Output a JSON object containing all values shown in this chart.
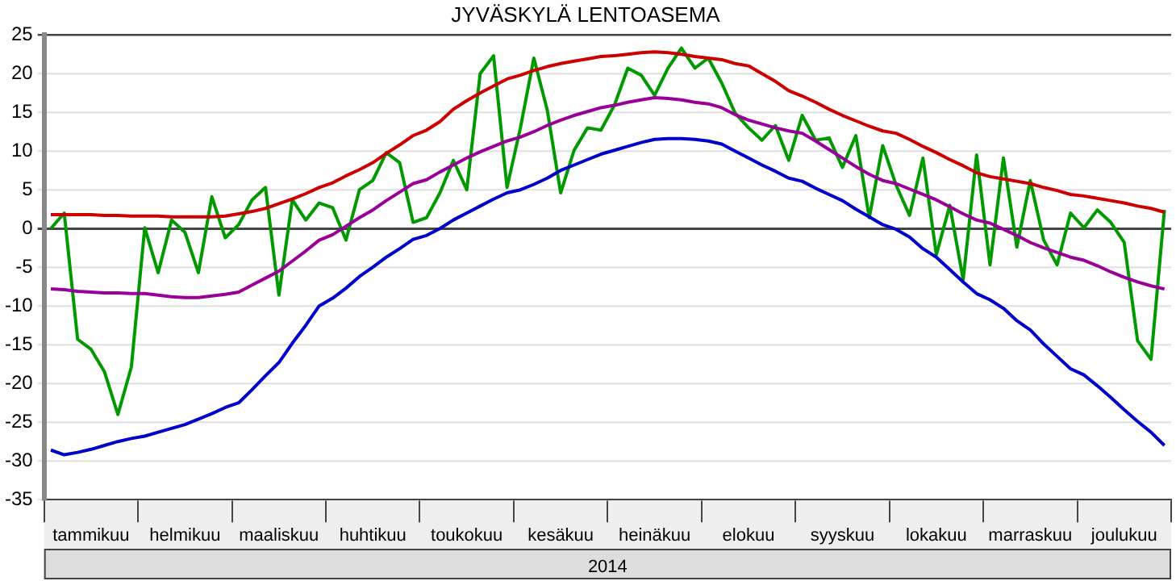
{
  "chart_data": {
    "type": "line",
    "title": "JYVÄSKYLÄ LENTOASEMA",
    "xlabel": "2014",
    "categories": [
      null,
      null,
      null,
      "tammikuu",
      null,
      null,
      null,
      null,
      null,
      null,
      "helmikuu",
      null,
      null,
      null,
      null,
      null,
      null,
      "maaliskuu",
      null,
      null,
      null,
      null,
      null,
      null,
      "huhtikuu",
      null,
      null,
      null,
      null,
      null,
      null,
      "toukokuu",
      null,
      null,
      null,
      null,
      null,
      null,
      "kesäkuu",
      null,
      null,
      null,
      null,
      null,
      null,
      "heinäkuu",
      null,
      null,
      null,
      null,
      null,
      null,
      "elokuu",
      null,
      null,
      null,
      null,
      null,
      null,
      "syyskuu",
      null,
      null,
      null,
      null,
      null,
      null,
      "lokakuu",
      null,
      null,
      null,
      null,
      null,
      null,
      "marraskuu",
      null,
      null,
      null,
      null,
      null,
      null,
      "joulukuu",
      null,
      null,
      null
    ],
    "ylim": [
      -35,
      25
    ],
    "yticks": [
      -35,
      -30,
      -25,
      -20,
      -15,
      -10,
      -5,
      0,
      5,
      10,
      15,
      20,
      25
    ],
    "grid": "y",
    "marker": "none",
    "line_style": "solid",
    "series": [
      {
        "color": "#cc0000",
        "values": [
          1.8,
          1.8,
          1.8,
          1.8,
          1.7,
          1.7,
          1.6,
          1.6,
          1.6,
          1.5,
          1.5,
          1.5,
          1.5,
          1.6,
          1.9,
          2.2,
          2.6,
          3.2,
          3.8,
          4.5,
          5.3,
          5.9,
          6.8,
          7.6,
          8.5,
          9.7,
          10.8,
          12,
          12.7,
          13.8,
          15.4,
          16.5,
          17.5,
          18.4,
          19.3,
          19.8,
          20.4,
          20.9,
          21.3,
          21.6,
          21.9,
          22.2,
          22.3,
          22.5,
          22.7,
          22.8,
          22.7,
          22.5,
          22.2,
          22,
          21.8,
          21.3,
          21,
          20,
          19,
          17.8,
          17.1,
          16.3,
          15.4,
          14.6,
          13.9,
          13.2,
          12.6,
          12.3,
          11.5,
          10.6,
          9.8,
          8.9,
          8.1,
          7.2,
          6.7,
          6.4,
          6.1,
          5.8,
          5.3,
          4.9,
          4.4,
          4.2,
          3.9,
          3.6,
          3.3,
          2.9,
          2.6,
          2.1
        ]
      },
      {
        "color": "#990099",
        "values": [
          -7.8,
          -7.9,
          -8.1,
          -8.2,
          -8.3,
          -8.3,
          -8.4,
          -8.4,
          -8.6,
          -8.8,
          -8.9,
          -8.9,
          -8.7,
          -8.5,
          -8.2,
          -7.3,
          -6.4,
          -5.5,
          -4.2,
          -2.9,
          -1.5,
          -0.8,
          0.3,
          1.4,
          2.4,
          3.6,
          4.7,
          5.8,
          6.3,
          7.3,
          8.2,
          9.1,
          9.9,
          10.6,
          11.3,
          11.8,
          12.5,
          13.3,
          14,
          14.6,
          15.1,
          15.6,
          15.9,
          16.3,
          16.6,
          16.9,
          16.8,
          16.6,
          16.3,
          16.1,
          15.6,
          14.7,
          14,
          13.5,
          13,
          12.6,
          12.3,
          11.3,
          10.2,
          9.1,
          8,
          7,
          6.2,
          5.8,
          5.1,
          4.4,
          3.7,
          2.8,
          1.9,
          1.1,
          0.7,
          -0.1,
          -0.9,
          -1.8,
          -2.5,
          -3.1,
          -3.7,
          -4.1,
          -4.8,
          -5.6,
          -6.3,
          -6.9,
          -7.4,
          -7.8
        ]
      },
      {
        "color": "#0000cc",
        "values": [
          -28.6,
          -29.2,
          -28.9,
          -28.5,
          -28,
          -27.5,
          -27.1,
          -26.8,
          -26.3,
          -25.8,
          -25.3,
          -24.6,
          -23.9,
          -23.1,
          -22.5,
          -20.8,
          -19,
          -17.3,
          -14.8,
          -12.5,
          -10,
          -9,
          -7.7,
          -6.2,
          -5,
          -3.7,
          -2.6,
          -1.4,
          -0.9,
          0,
          1.1,
          2,
          2.9,
          3.8,
          4.6,
          5,
          5.7,
          6.5,
          7.5,
          8.2,
          8.9,
          9.6,
          10.1,
          10.6,
          11.1,
          11.5,
          11.6,
          11.6,
          11.5,
          11.3,
          10.9,
          10,
          9.1,
          8.2,
          7.4,
          6.5,
          6.1,
          5.2,
          4.4,
          3.6,
          2.5,
          1.5,
          0.5,
          -0.1,
          -1.1,
          -2.6,
          -3.7,
          -5.3,
          -6.9,
          -8.4,
          -9.2,
          -10.3,
          -11.9,
          -13.1,
          -14.9,
          -16.5,
          -18.1,
          -18.9,
          -20.3,
          -21.8,
          -23.4,
          -24.9,
          -26.3,
          -28
        ]
      },
      {
        "color": "#009900",
        "values": [
          0,
          2,
          -14.3,
          -15.6,
          -18.5,
          -24,
          -17.9,
          0.1,
          -5.7,
          1.1,
          -0.5,
          -5.7,
          4.1,
          -1.2,
          0.5,
          3.7,
          5.3,
          -8.6,
          3.7,
          1.1,
          3.3,
          2.7,
          -1.5,
          5,
          6.2,
          9.8,
          8.5,
          0.8,
          1.4,
          4.6,
          8.8,
          5,
          20,
          22.3,
          5.3,
          13,
          22,
          15.3,
          4.6,
          10.1,
          13,
          12.7,
          15.9,
          20.7,
          19.8,
          17.2,
          20.7,
          23.3,
          20.7,
          22,
          18.8,
          14.9,
          13,
          11.4,
          13.3,
          8.8,
          14.6,
          11.4,
          11.7,
          7.9,
          12,
          1.4,
          10.7,
          5.6,
          1.7,
          9.1,
          -3.4,
          3,
          -6.6,
          9.5,
          -4.7,
          9.1,
          -2.4,
          6.2,
          -1.5,
          -4.7,
          2,
          0.1,
          2.4,
          0.8,
          -1.8,
          -14.5,
          -16.9,
          2.4
        ]
      }
    ]
  }
}
